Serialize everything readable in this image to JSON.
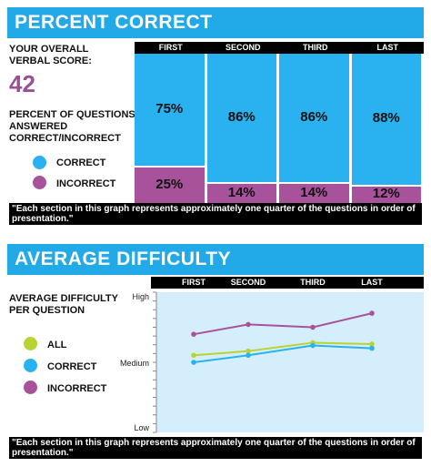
{
  "colors": {
    "blue": "#2ab2f0",
    "purple": "#a8529b",
    "green": "#b8d433",
    "accent_header": "#22a9e8",
    "plot_bg": "#d5eefb"
  },
  "percent_section": {
    "title": "PERCENT CORRECT",
    "overall_label": "YOUR OVERALL VERBAL SCORE:",
    "overall_score": "42",
    "pct_label": "PERCENT OF QUESTIONS ANSWERED CORRECT/INCORRECT",
    "legend": [
      {
        "label": "CORRECT",
        "color": "#2ab2f0"
      },
      {
        "label": "INCORRECT",
        "color": "#a8529b"
      }
    ],
    "note": "\"Each section in this graph represents approximately one quarter of the questions in order of presentation.\""
  },
  "difficulty_section": {
    "title": "AVERAGE DIFFICULTY",
    "avg_label": "AVERAGE DIFFICULTY PER QUESTION",
    "legend": [
      {
        "label": "ALL",
        "color": "#b8d433"
      },
      {
        "label": "CORRECT",
        "color": "#2ab2f0"
      },
      {
        "label": "INCORRECT",
        "color": "#a8529b"
      }
    ],
    "note": "\"Each section in this graph represents approximately one quarter of the questions in order of presentation.\""
  },
  "chart_data": [
    {
      "type": "bar",
      "stacked": true,
      "categories": [
        "FIRST",
        "SECOND",
        "THIRD",
        "LAST"
      ],
      "series": [
        {
          "name": "CORRECT",
          "values": [
            75,
            86,
            86,
            88
          ],
          "labels": [
            "75%",
            "86%",
            "86%",
            "88%"
          ],
          "color": "#2ab2f0"
        },
        {
          "name": "INCORRECT",
          "values": [
            25,
            14,
            14,
            12
          ],
          "labels": [
            "25%",
            "14%",
            "14%",
            "12%"
          ],
          "color": "#a8529b"
        }
      ],
      "ylim": [
        0,
        100
      ],
      "legend": "left"
    },
    {
      "type": "line",
      "categories": [
        "FIRST",
        "SECOND",
        "THIRD",
        "LAST"
      ],
      "y_tick_labels": [
        "High",
        "Medium",
        "Low"
      ],
      "ylim": [
        0,
        1
      ],
      "series": [
        {
          "name": "ALL",
          "values": [
            0.55,
            0.58,
            0.64,
            0.63
          ],
          "color": "#b8d433"
        },
        {
          "name": "CORRECT",
          "values": [
            0.5,
            0.55,
            0.62,
            0.6
          ],
          "color": "#2ab2f0"
        },
        {
          "name": "INCORRECT",
          "values": [
            0.7,
            0.77,
            0.75,
            0.85
          ],
          "color": "#a8529b"
        }
      ],
      "grid": false,
      "legend": "left"
    }
  ]
}
